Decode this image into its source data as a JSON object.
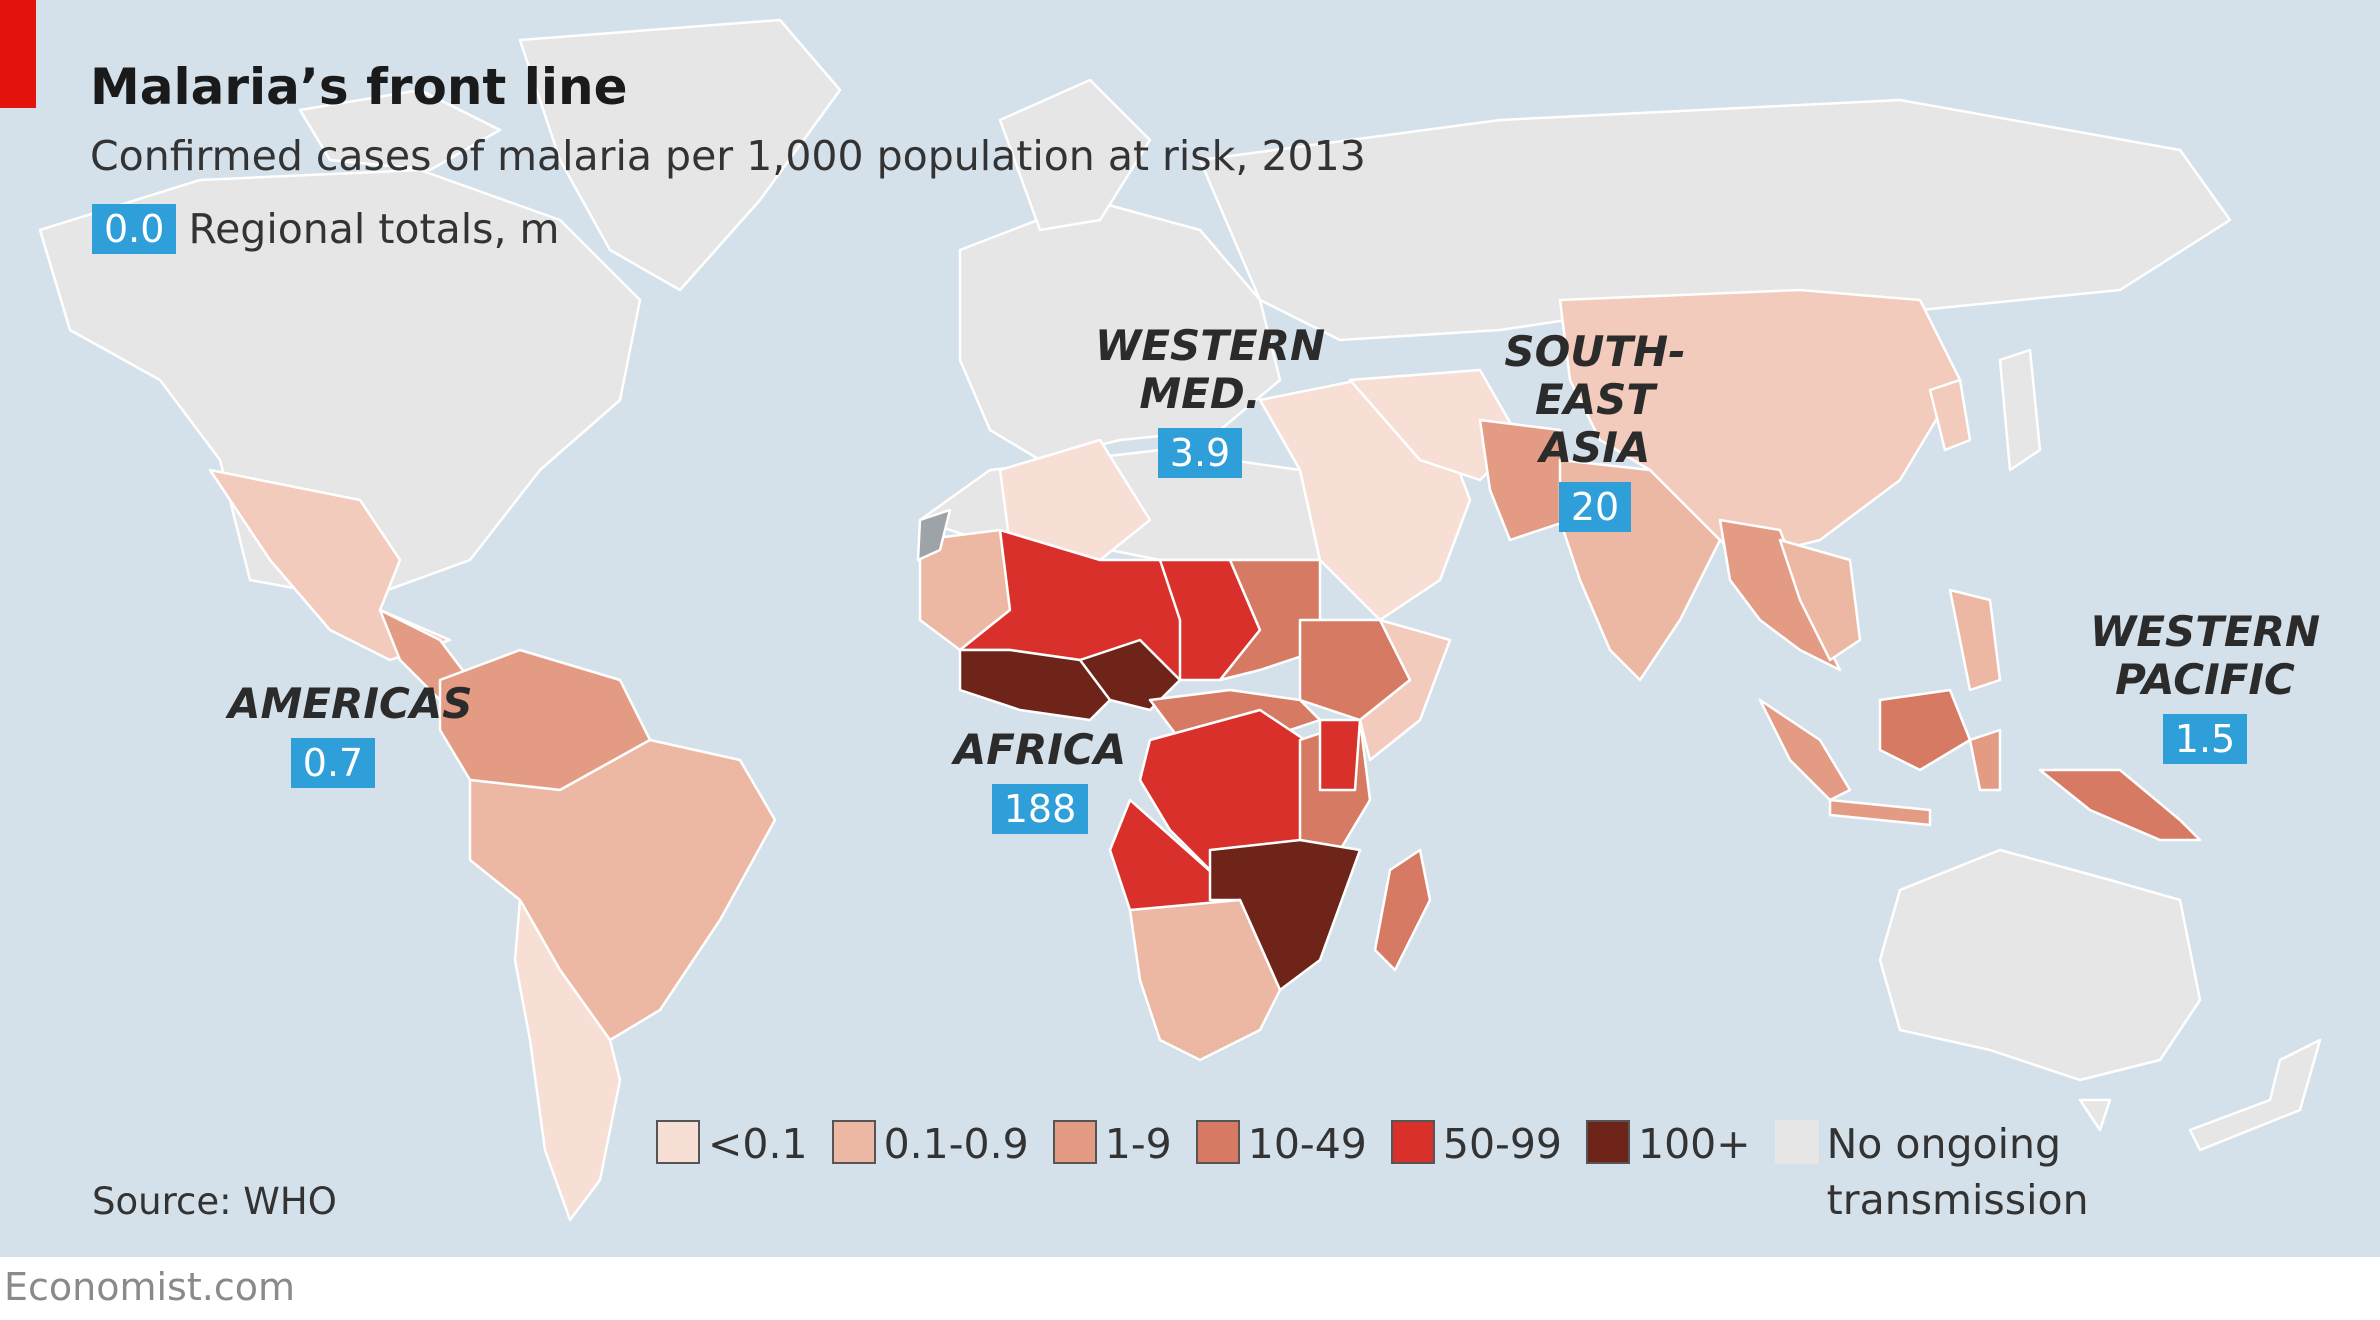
{
  "header": {
    "title": "Malaria’s front line",
    "subtitle": "Confirmed cases of malaria per 1,000 population at risk, 2013",
    "key_badge": "0.0",
    "key_text": "Regional totals, m"
  },
  "regions": [
    {
      "name": "AMERICAS",
      "total": "0.7"
    },
    {
      "name": "AFRICA",
      "total": "188"
    },
    {
      "name": "WESTERN\nMED.",
      "total": "3.9"
    },
    {
      "name": "SOUTH-EAST\nASIA",
      "total": "20"
    },
    {
      "name": "WESTERN\nPACIFIC",
      "total": "1.5"
    }
  ],
  "legend": [
    {
      "label": "<0.1",
      "color": "#f7dfd5"
    },
    {
      "label": "0.1-0.9",
      "color": "#ecb7a3"
    },
    {
      "label": "1-9",
      "color": "#e39b84"
    },
    {
      "label": "10-49",
      "color": "#d77a63"
    },
    {
      "label": "50-99",
      "color": "#d9302b"
    },
    {
      "label": "100+",
      "color": "#6e2418"
    },
    {
      "label": "No ongoing\ntransmission",
      "color": "#e6e6e6"
    }
  ],
  "source": "Source: WHO",
  "footer": "Economist.com",
  "colors": {
    "ocean": "#d5e1ea",
    "badge": "#2e9fd8",
    "accent": "#e3120b"
  }
}
